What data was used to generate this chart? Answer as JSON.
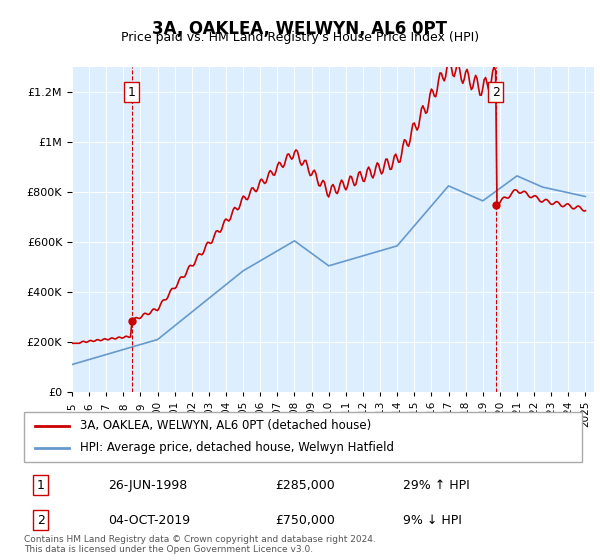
{
  "title": "3A, OAKLEA, WELWYN, AL6 0PT",
  "subtitle": "Price paid vs. HM Land Registry's House Price Index (HPI)",
  "legend_line1": "3A, OAKLEA, WELWYN, AL6 0PT (detached house)",
  "legend_line2": "HPI: Average price, detached house, Welwyn Hatfield",
  "transaction1": {
    "label": "1",
    "date": "26-JUN-1998",
    "price": 285000,
    "pct": "29%",
    "dir": "↑"
  },
  "transaction2": {
    "label": "2",
    "date": "04-OCT-2019",
    "price": 750000,
    "pct": "9%",
    "dir": "↓"
  },
  "footer": "Contains HM Land Registry data © Crown copyright and database right 2024.\nThis data is licensed under the Open Government Licence v3.0.",
  "price_line_color": "#cc0000",
  "hpi_line_color": "#6699cc",
  "vline_color": "#cc0000",
  "background_color": "#ddeeff",
  "plot_bg_color": "#ddeeff",
  "ylim": [
    0,
    1300000
  ],
  "xlim_start": 1995.0,
  "xlim_end": 2025.5
}
